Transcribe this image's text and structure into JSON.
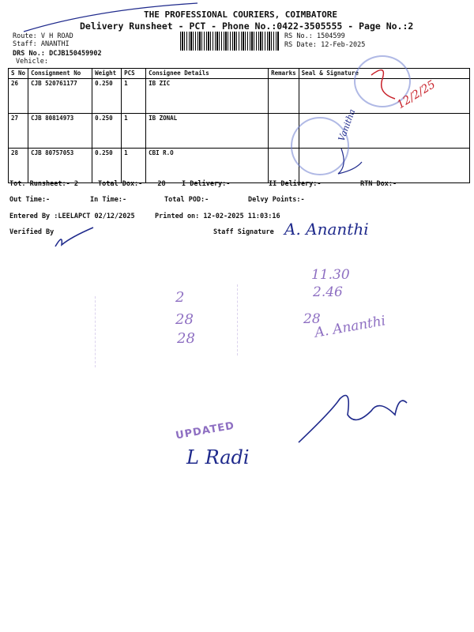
{
  "header": {
    "company": "THE PROFESSIONAL COURIERS, COIMBATORE",
    "subtitle": "Delivery Runsheet - PCT - Phone No.:0422-3505555 - Page No.:2",
    "route_label": "Route:",
    "route_value": "V H ROAD",
    "staff_label": "Staff:",
    "staff_value": "ANANTHI",
    "drs_label": "DRS No.:",
    "drs_value": "DCJB150459902",
    "vehicle_label": "Vehicle:",
    "rs_no_label": "RS No.:",
    "rs_no_value": "1504599",
    "rs_date_label": "RS Date:",
    "rs_date_value": "12-Feb-2025"
  },
  "table": {
    "columns": [
      "S No",
      "Consignment No",
      "Weight",
      "PCS",
      "Consignee Details",
      "Remarks",
      "Seal & Signature"
    ],
    "rows": [
      {
        "sno": "26",
        "consignment": "CJB 520761177",
        "weight": "0.250",
        "pcs": "1",
        "consignee": "IB ZIC"
      },
      {
        "sno": "27",
        "consignment": "CJB 80814973",
        "weight": "0.250",
        "pcs": "1",
        "consignee": "IB ZONAL"
      },
      {
        "sno": "28",
        "consignment": "CJB 80757053",
        "weight": "0.250",
        "pcs": "1",
        "consignee": "CBI R.O"
      }
    ]
  },
  "summary": {
    "tot_runsheet": "Tot. Runsheet:- 2",
    "total_dox": "Total Dox:-",
    "total_dox_value": "28",
    "i_delivery": "I Delivery:-",
    "ii_delivery": "II Delivery:-",
    "rtn_dox": "RTN Dox:-",
    "out_time": "Out Time:-",
    "in_time": "In Time:-",
    "total_pod": "Total POD:-",
    "delvy_points": "Delvy Points:-"
  },
  "footer": {
    "entered_by": "Entered By :LEELAPCT 02/12/2025",
    "printed_on": "Printed on: 12-02-2025 11:03:16",
    "verified_by": "Verified By",
    "staff_signature": "Staff Signature",
    "staff_signature_handwritten": "A. Ananthi"
  },
  "handwriting": {
    "seal_date": "12/2/25",
    "row_sign": "Vanitha",
    "num_1": "2",
    "num_2": "28",
    "num_3": "28",
    "time_1": "11.30",
    "time_2": "2.46",
    "num_4": "28",
    "name_2": "A. Ananthi",
    "updated_stamp": "UPDATED",
    "updated_sign": "L Radi"
  },
  "colors": {
    "ink_blue": "#1f2a8c",
    "ink_red": "#c8212a",
    "stamp_purple": "#7b57b8"
  }
}
